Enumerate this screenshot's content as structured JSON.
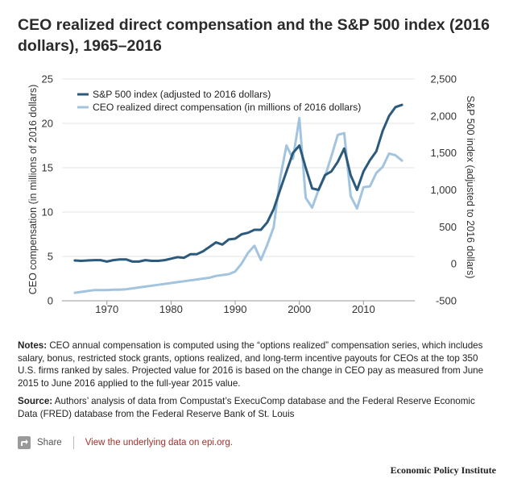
{
  "title": "CEO realized direct compensation and the S&P 500 index (2016 dollars), 1965–2016",
  "chart_data": {
    "type": "line",
    "title": "CEO realized direct compensation and the S&P 500 index (2016 dollars), 1965–2016",
    "xlabel": "",
    "ylabel": "CEO compensation (in millions of 2016 dollars)",
    "y2label": "S&P 500 index (adjusted to 2016 dollars)",
    "xlim": [
      1963,
      2018
    ],
    "ylim": [
      0,
      25
    ],
    "y2lim": [
      -500,
      2500
    ],
    "x_ticks": [
      1970,
      1980,
      1990,
      2000,
      2010
    ],
    "y_ticks": [
      0,
      5,
      10,
      15,
      20,
      25
    ],
    "y2_ticks": [
      -500,
      0,
      500,
      1000,
      1500,
      2000,
      2500
    ],
    "y2_tick_labels": [
      "-500",
      "0",
      "500",
      "1,000",
      "1,500",
      "2,000",
      "2,500"
    ],
    "grid": true,
    "legend_position": "top-left",
    "series": [
      {
        "name": "S&P 500 index (adjusted to 2016 dollars)",
        "axis": "right",
        "color": "#2c5a7c",
        "x": [
          1965,
          1966,
          1967,
          1968,
          1969,
          1970,
          1971,
          1972,
          1973,
          1974,
          1975,
          1976,
          1977,
          1978,
          1979,
          1980,
          1981,
          1982,
          1983,
          1984,
          1985,
          1986,
          1987,
          1988,
          1989,
          1990,
          1991,
          1992,
          1993,
          1994,
          1995,
          1996,
          1997,
          1998,
          1999,
          2000,
          2001,
          2002,
          2003,
          2004,
          2005,
          2006,
          2007,
          2008,
          2009,
          2010,
          2011,
          2012,
          2013,
          2014,
          2015,
          2016
        ],
        "y": [
          45,
          40,
          45,
          50,
          50,
          30,
          50,
          60,
          60,
          30,
          30,
          50,
          40,
          40,
          50,
          70,
          90,
          80,
          130,
          130,
          170,
          230,
          290,
          260,
          330,
          340,
          400,
          420,
          460,
          460,
          560,
          740,
          1000,
          1250,
          1500,
          1600,
          1300,
          1020,
          1000,
          1200,
          1250,
          1380,
          1560,
          1200,
          1000,
          1250,
          1400,
          1520,
          1800,
          2000,
          2120,
          2150
        ]
      },
      {
        "name": "CEO realized direct compensation (in millions of 2016 dollars)",
        "axis": "left",
        "color": "#a3c4df",
        "x": [
          1965,
          1966,
          1967,
          1968,
          1969,
          1970,
          1971,
          1972,
          1973,
          1974,
          1975,
          1976,
          1977,
          1978,
          1979,
          1980,
          1981,
          1982,
          1983,
          1984,
          1985,
          1986,
          1987,
          1988,
          1989,
          1990,
          1991,
          1992,
          1993,
          1994,
          1995,
          1996,
          1997,
          1998,
          1999,
          2000,
          2001,
          2002,
          2003,
          2004,
          2005,
          2006,
          2007,
          2008,
          2009,
          2010,
          2011,
          2012,
          2013,
          2014,
          2015,
          2016
        ],
        "y": [
          0.9,
          1.0,
          1.1,
          1.2,
          1.2,
          1.2,
          1.25,
          1.25,
          1.3,
          1.4,
          1.5,
          1.6,
          1.7,
          1.8,
          1.9,
          2.0,
          2.1,
          2.2,
          2.3,
          2.4,
          2.5,
          2.6,
          2.8,
          2.9,
          3.0,
          3.3,
          4.2,
          5.4,
          6.2,
          4.6,
          6.3,
          8.3,
          13.8,
          17.5,
          16.0,
          20.6,
          11.6,
          10.5,
          12.5,
          14.0,
          16.3,
          18.7,
          18.9,
          11.8,
          10.4,
          12.8,
          12.9,
          14.4,
          15.1,
          16.6,
          16.4,
          15.8
        ]
      }
    ]
  },
  "notes": {
    "label": "Notes:",
    "text": "CEO annual compensation is computed using the “options realized” compensation series, which includes salary, bonus, restricted stock grants, options realized, and long-term incentive payouts for CEOs at the top 350 U.S. firms ranked by sales. Projected value for 2016 is based on the change in CEO pay as measured from June 2015 to June 2016 applied to the full-year 2015 value."
  },
  "source": {
    "label": "Source:",
    "text": "Authors’ analysis of data from Compustat’s ExecuComp database and the Federal Reserve Economic Data (FRED) database from the Federal Reserve Bank of St. Louis"
  },
  "footer": {
    "share_label": "Share",
    "data_link": "View the underlying data on epi.org.",
    "brand": "Economic Policy Institute"
  },
  "colors": {
    "gridline": "#e3e3e3",
    "axis_text": "#333333",
    "link": "#a3322e"
  }
}
